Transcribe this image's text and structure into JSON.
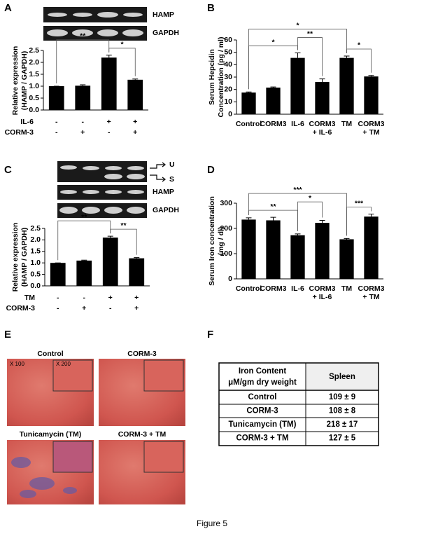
{
  "panels": [
    "A",
    "B",
    "C",
    "D",
    "E",
    "F"
  ],
  "gels": {
    "a": [
      "HAMP",
      "GAPDH"
    ],
    "c": [
      "U",
      "S",
      "HAMP",
      "GAPDH"
    ]
  },
  "chart_data": [
    {
      "type": "bar",
      "ylabel": [
        "Relative expression",
        "(HAMP / GAPDH)"
      ],
      "conditions": [
        {
          "name": "IL-6",
          "signs": [
            "-",
            "-",
            "+",
            "+"
          ]
        },
        {
          "name": "CORM-3",
          "signs": [
            "-",
            "+",
            "-",
            "+"
          ]
        }
      ],
      "values": [
        1.0,
        1.02,
        2.2,
        1.27
      ],
      "errors": [
        0,
        0.04,
        0.1,
        0.03
      ],
      "color": "#000000",
      "ylim": [
        0,
        2.5
      ],
      "yticks": [
        {
          "value": 0,
          "label": "0.0"
        },
        0.5,
        {
          "value": 1,
          "label": "1.0"
        },
        1.5,
        {
          "value": 2,
          "label": "2.0"
        },
        2.5
      ],
      "annotations": [
        {
          "text": "*",
          "between": [
            2,
            3
          ]
        },
        {
          "text": "**",
          "between": [
            0,
            2
          ]
        }
      ]
    },
    {
      "type": "bar",
      "ylabel": [
        "Serum Hepcidin",
        "Concentration (pg / ml)"
      ],
      "categories": [
        [
          "Control"
        ],
        [
          "CORM3"
        ],
        [
          "IL-6"
        ],
        [
          "CORM3",
          "+ IL-6"
        ],
        [
          "TM"
        ],
        [
          "CORM3",
          "+ TM"
        ]
      ],
      "values": [
        17.5,
        21.5,
        45.5,
        26,
        45.5,
        30.5
      ],
      "errors": [
        0.5,
        0.5,
        4,
        2.5,
        1.5,
        0.8
      ],
      "color": "#000000",
      "ylim": [
        0,
        60
      ],
      "yticks": [
        0,
        10,
        20,
        30,
        40,
        50,
        60
      ],
      "annotations": [
        {
          "text": "*",
          "between": [
            0,
            2
          ]
        },
        {
          "text": "**",
          "between": [
            2,
            3
          ]
        },
        {
          "text": "*",
          "between": [
            4,
            5
          ]
        },
        {
          "text": "*",
          "between": [
            0,
            4
          ]
        }
      ]
    },
    {
      "type": "bar",
      "ylabel": [
        "Relative expression",
        "(HAMP / GAPDH)"
      ],
      "conditions": [
        {
          "name": "TM",
          "signs": [
            "-",
            "-",
            "+",
            "+"
          ]
        },
        {
          "name": "CORM-3",
          "signs": [
            "-",
            "+",
            "-",
            "+"
          ]
        }
      ],
      "values": [
        1.0,
        1.1,
        2.1,
        1.2
      ],
      "errors": [
        0,
        0.02,
        0.06,
        0.03
      ],
      "color": "#000000",
      "ylim": [
        0,
        2.5
      ],
      "yticks": [
        {
          "value": 0,
          "label": "0.0"
        },
        0.5,
        {
          "value": 1,
          "label": "1.0"
        },
        1.5,
        {
          "value": 2,
          "label": "2.0"
        },
        2.5
      ],
      "annotations": [
        {
          "text": "**",
          "between": [
            2,
            3
          ]
        },
        {
          "text": "**",
          "between": [
            0,
            2
          ]
        }
      ]
    },
    {
      "type": "bar",
      "ylabel": [
        "Serum Iron concentration",
        "(mg / dl)"
      ],
      "categories": [
        [
          "Control"
        ],
        [
          "CORM3"
        ],
        [
          "IL-6"
        ],
        [
          "CORM3",
          "+ IL-6"
        ],
        [
          "TM"
        ],
        [
          "CORM3",
          "+ TM"
        ]
      ],
      "values": [
        235,
        232,
        173,
        222,
        157,
        247
      ],
      "errors": [
        7,
        12,
        5,
        10,
        3,
        10
      ],
      "color": "#000000",
      "ylim": [
        0,
        300
      ],
      "yticks": [
        0,
        100,
        200,
        300
      ],
      "annotations": [
        {
          "text": "**",
          "between": [
            0,
            2
          ]
        },
        {
          "text": "*",
          "between": [
            2,
            3
          ]
        },
        {
          "text": "***",
          "between": [
            4,
            5
          ]
        },
        {
          "text": "***",
          "between": [
            0,
            4
          ]
        }
      ]
    }
  ],
  "histology": {
    "magnifications": [
      "X 100",
      "X 200"
    ],
    "labels": [
      "Control",
      "CORM-3",
      "Tunicamycin (TM)",
      "CORM-3 + TM"
    ]
  },
  "table": {
    "header": {
      "label_lines": [
        "Iron Content",
        "μM/gm dry weight"
      ],
      "column": "Spleen"
    },
    "rows": [
      [
        "Control",
        "109 ± 9"
      ],
      [
        "CORM-3",
        "108 ± 8"
      ],
      [
        "Tunicamycin (TM)",
        "218 ± 17"
      ],
      [
        "CORM-3 + TM",
        "127 ± 5"
      ]
    ]
  },
  "caption": "Figure 5"
}
